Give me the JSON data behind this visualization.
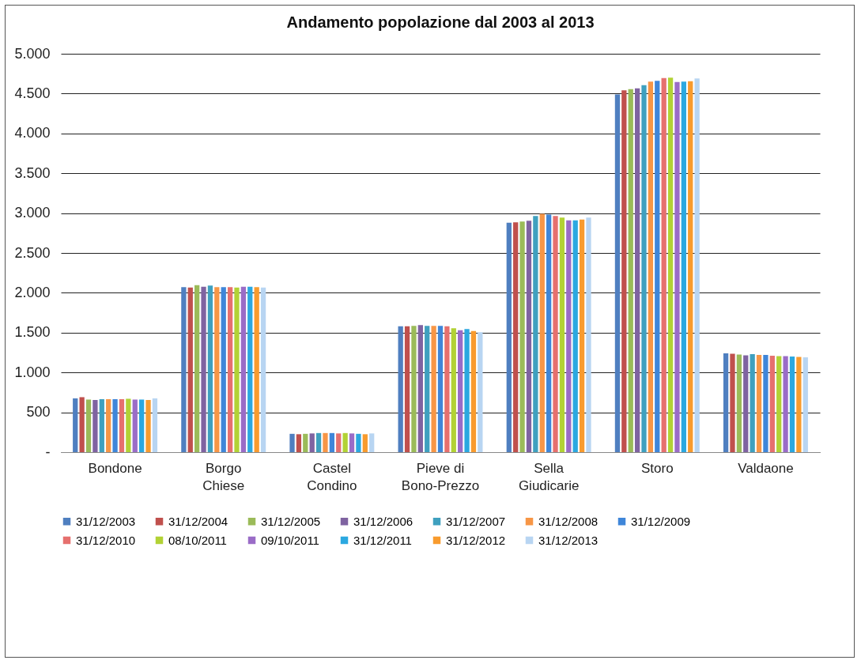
{
  "chart_data": {
    "type": "bar",
    "title": "Andamento popolazione dal 2003 al 2013",
    "categories": [
      "Bondone",
      "Borgo Chiese",
      "Castel Condino",
      "Pieve di Bono-Prezzo",
      "Sella Giudicarie",
      "Storo",
      "Valdaone"
    ],
    "series": [
      {
        "name": "31/12/2003",
        "color": "#4f7fc0",
        "values": [
          675,
          2070,
          230,
          1580,
          2880,
          4490,
          1240
        ]
      },
      {
        "name": "31/12/2004",
        "color": "#c0504d",
        "values": [
          690,
          2065,
          225,
          1580,
          2885,
          4540,
          1235
        ]
      },
      {
        "name": "31/12/2005",
        "color": "#9bbb59",
        "values": [
          660,
          2095,
          230,
          1585,
          2895,
          4555,
          1225
        ]
      },
      {
        "name": "31/12/2006",
        "color": "#7f63a1",
        "values": [
          655,
          2075,
          235,
          1595,
          2905,
          4565,
          1215
        ]
      },
      {
        "name": "31/12/2007",
        "color": "#3fa0bf",
        "values": [
          665,
          2090,
          240,
          1585,
          2965,
          4605,
          1230
        ]
      },
      {
        "name": "31/12/2008",
        "color": "#f79646",
        "values": [
          665,
          2070,
          240,
          1585,
          2990,
          4650,
          1220
        ]
      },
      {
        "name": "31/12/2009",
        "color": "#3f86d9",
        "values": [
          665,
          2070,
          240,
          1585,
          2980,
          4660,
          1220
        ]
      },
      {
        "name": "31/12/2010",
        "color": "#e6706e",
        "values": [
          665,
          2070,
          235,
          1580,
          2965,
          4695,
          1210
        ]
      },
      {
        "name": "08/10/2011",
        "color": "#b2d235",
        "values": [
          670,
          2065,
          240,
          1555,
          2945,
          4700,
          1205
        ]
      },
      {
        "name": "09/10/2011",
        "color": "#9a6cc7",
        "values": [
          660,
          2075,
          235,
          1530,
          2910,
          4645,
          1205
        ]
      },
      {
        "name": "31/12/2011",
        "color": "#2ba8e0",
        "values": [
          660,
          2075,
          230,
          1545,
          2910,
          4650,
          1200
        ]
      },
      {
        "name": "31/12/2012",
        "color": "#f89b2e",
        "values": [
          655,
          2070,
          225,
          1520,
          2920,
          4655,
          1195
        ]
      },
      {
        "name": "31/12/2013",
        "color": "#b8d5f2",
        "values": [
          675,
          2065,
          235,
          1505,
          2945,
          4690,
          1190
        ]
      }
    ],
    "ylim": [
      0,
      5000
    ],
    "yticks": [
      {
        "value": 0,
        "label": "-"
      },
      {
        "value": 500,
        "label": "500"
      },
      {
        "value": 1000,
        "label": "1.000"
      },
      {
        "value": 1500,
        "label": "1.500"
      },
      {
        "value": 2000,
        "label": "2.000"
      },
      {
        "value": 2500,
        "label": "2.500"
      },
      {
        "value": 3000,
        "label": "3.000"
      },
      {
        "value": 3500,
        "label": "3.500"
      },
      {
        "value": 4000,
        "label": "4.000"
      },
      {
        "value": 4500,
        "label": "4.500"
      },
      {
        "value": 5000,
        "label": "5.000"
      }
    ],
    "grid": "y",
    "legend": "bottom"
  }
}
